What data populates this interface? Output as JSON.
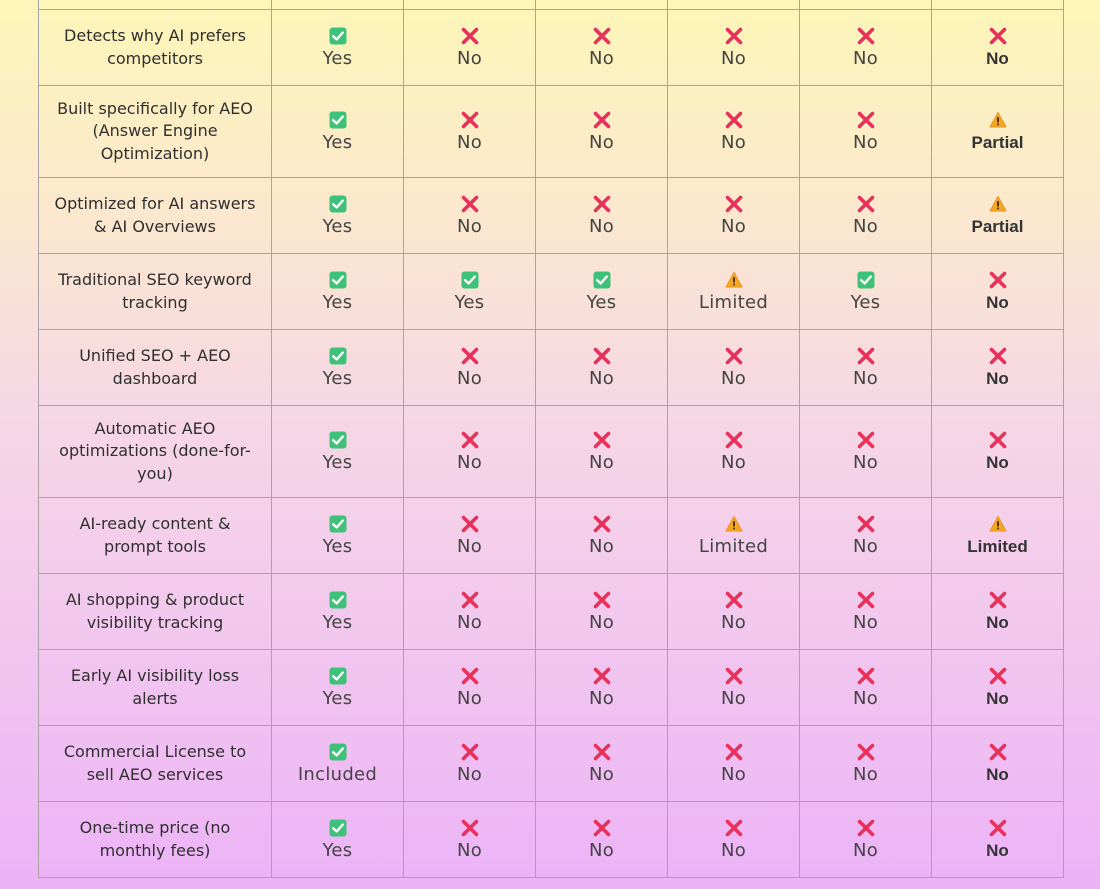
{
  "rows": [
    {
      "feature": "Detects why AI prefers competitors",
      "cells": [
        [
          "check",
          "Yes"
        ],
        [
          "cross",
          "No"
        ],
        [
          "cross",
          "No"
        ],
        [
          "cross",
          "No"
        ],
        [
          "cross",
          "No"
        ],
        [
          "cross",
          "No"
        ]
      ]
    },
    {
      "feature": "Built specifically for AEO (Answer Engine Optimization)",
      "cells": [
        [
          "check",
          "Yes"
        ],
        [
          "cross",
          "No"
        ],
        [
          "cross",
          "No"
        ],
        [
          "cross",
          "No"
        ],
        [
          "cross",
          "No"
        ],
        [
          "warn",
          "Partial"
        ]
      ]
    },
    {
      "feature": "Optimized for AI answers & AI Overviews",
      "cells": [
        [
          "check",
          "Yes"
        ],
        [
          "cross",
          "No"
        ],
        [
          "cross",
          "No"
        ],
        [
          "cross",
          "No"
        ],
        [
          "cross",
          "No"
        ],
        [
          "warn",
          "Partial"
        ]
      ]
    },
    {
      "feature": "Traditional SEO keyword tracking",
      "cells": [
        [
          "check",
          "Yes"
        ],
        [
          "check",
          "Yes"
        ],
        [
          "check",
          "Yes"
        ],
        [
          "warn",
          "Limited"
        ],
        [
          "check",
          "Yes"
        ],
        [
          "cross",
          "No"
        ]
      ]
    },
    {
      "feature": "Unified SEO + AEO dashboard",
      "cells": [
        [
          "check",
          "Yes"
        ],
        [
          "cross",
          "No"
        ],
        [
          "cross",
          "No"
        ],
        [
          "cross",
          "No"
        ],
        [
          "cross",
          "No"
        ],
        [
          "cross",
          "No"
        ]
      ]
    },
    {
      "feature": "Automatic AEO optimizations (done-for-you)",
      "cells": [
        [
          "check",
          "Yes"
        ],
        [
          "cross",
          "No"
        ],
        [
          "cross",
          "No"
        ],
        [
          "cross",
          "No"
        ],
        [
          "cross",
          "No"
        ],
        [
          "cross",
          "No"
        ]
      ]
    },
    {
      "feature": "AI-ready content & prompt tools",
      "cells": [
        [
          "check",
          "Yes"
        ],
        [
          "cross",
          "No"
        ],
        [
          "cross",
          "No"
        ],
        [
          "warn",
          "Limited"
        ],
        [
          "cross",
          "No"
        ],
        [
          "warn",
          "Limited"
        ]
      ]
    },
    {
      "feature": "AI shopping & product visibility tracking",
      "cells": [
        [
          "check",
          "Yes"
        ],
        [
          "cross",
          "No"
        ],
        [
          "cross",
          "No"
        ],
        [
          "cross",
          "No"
        ],
        [
          "cross",
          "No"
        ],
        [
          "cross",
          "No"
        ]
      ]
    },
    {
      "feature": "Early AI visibility loss alerts",
      "cells": [
        [
          "check",
          "Yes"
        ],
        [
          "cross",
          "No"
        ],
        [
          "cross",
          "No"
        ],
        [
          "cross",
          "No"
        ],
        [
          "cross",
          "No"
        ],
        [
          "cross",
          "No"
        ]
      ]
    },
    {
      "feature": "Commercial License to sell AEO services",
      "cells": [
        [
          "check",
          "Included"
        ],
        [
          "cross",
          "No"
        ],
        [
          "cross",
          "No"
        ],
        [
          "cross",
          "No"
        ],
        [
          "cross",
          "No"
        ],
        [
          "cross",
          "No"
        ]
      ]
    },
    {
      "feature": "One-time price (no monthly fees)",
      "cells": [
        [
          "check",
          "Yes"
        ],
        [
          "cross",
          "No"
        ],
        [
          "cross",
          "No"
        ],
        [
          "cross",
          "No"
        ],
        [
          "cross",
          "No"
        ],
        [
          "cross",
          "No"
        ]
      ]
    }
  ],
  "row_heights": [],
  "colors": {
    "check": "#3cc47a",
    "cross": "#e8305a",
    "warn": "#f5a623",
    "border": "#a9a2a6"
  }
}
